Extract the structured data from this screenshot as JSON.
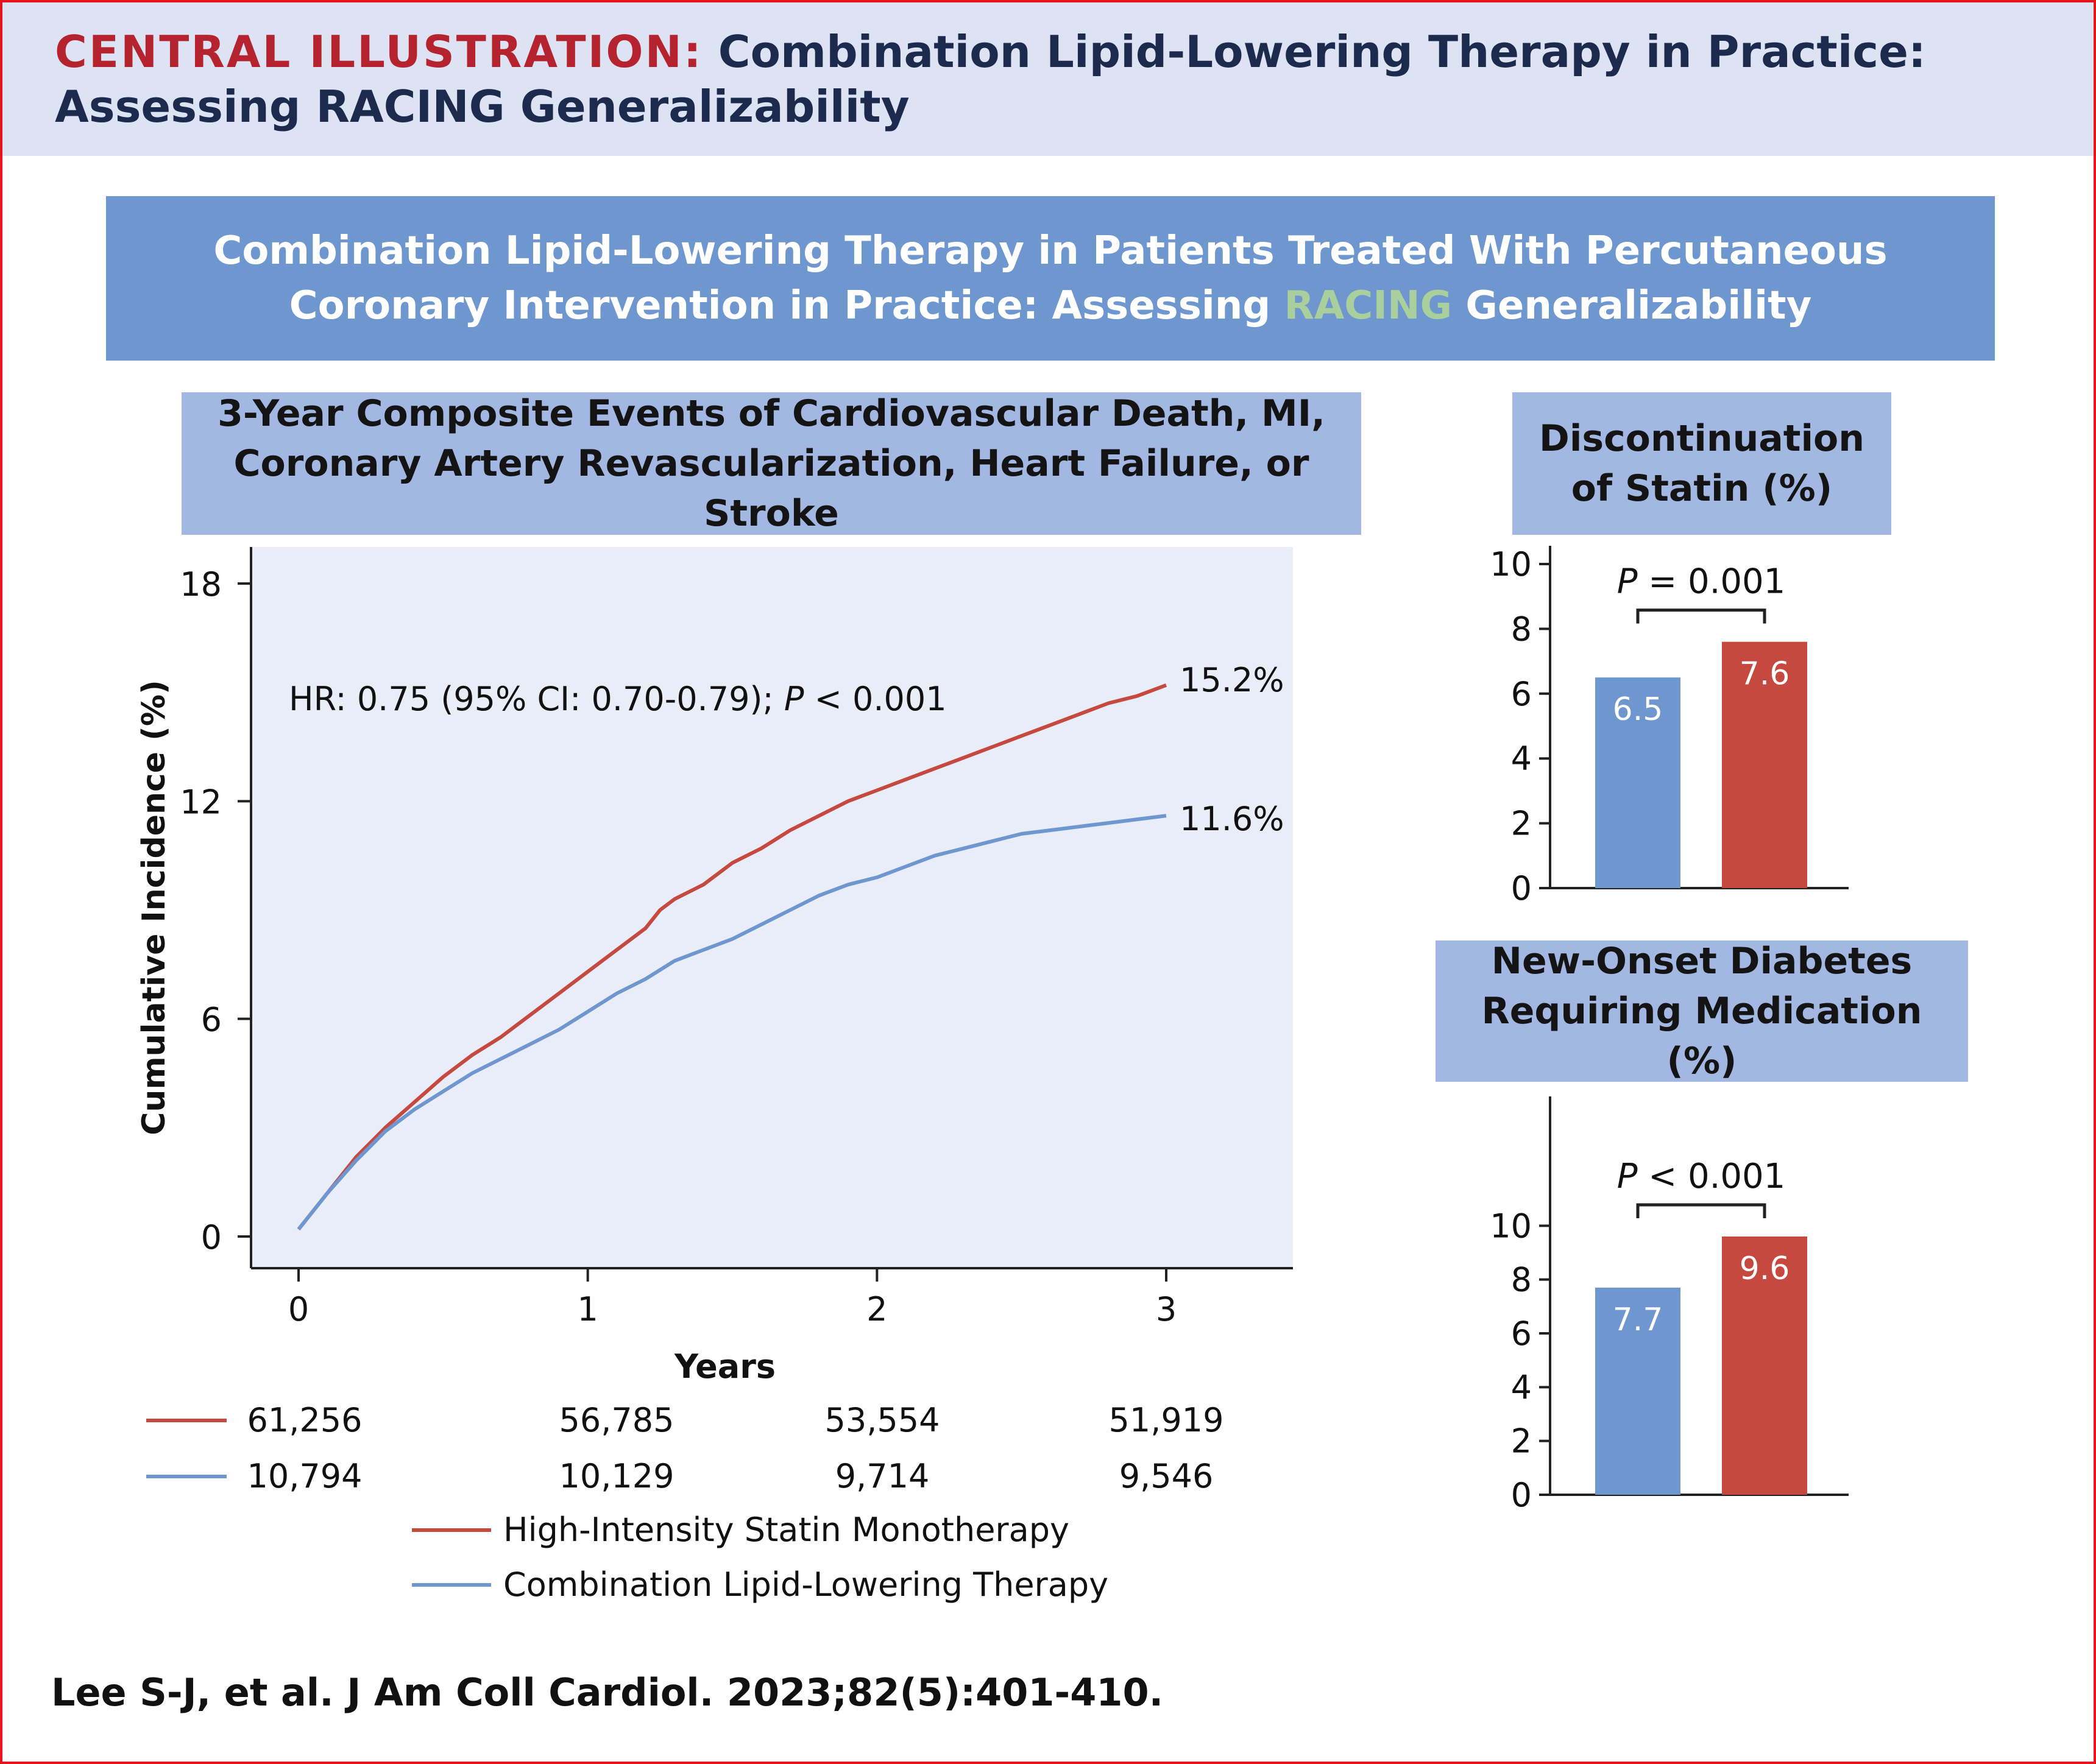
{
  "header": {
    "label": "CENTRAL ILLUSTRATION:",
    "title": "Combination Lipid-Lowering Therapy in Practice: Assessing RACING Generalizability"
  },
  "banner": {
    "before": "Combination Lipid-Lowering Therapy in Patients Treated With Percutaneous Coronary Intervention in Practice: Assessing ",
    "highlight": "RACING",
    "after": " Generalizability"
  },
  "colors": {
    "red": "#c5493f",
    "blue": "#6e96cf",
    "header_label": "#b5232e",
    "highlight": "#a9cf9c",
    "plot_bg": "#e9edf7"
  },
  "panels": {
    "km": {
      "title": "3-Year Composite Events of Cardiovascular Death, MI, Coronary Artery Revascularization, Heart Failure, or Stroke"
    },
    "statin": {
      "title": "Discontinuation of Statin (%)"
    },
    "diabetes": {
      "title": "New-Onset Diabetes Requiring Medication (%)"
    }
  },
  "chart_data": [
    {
      "type": "line",
      "xlabel": "Years",
      "ylabel": "Cumulative Incidence (%)",
      "xlim": [
        0,
        3
      ],
      "ylim": [
        0,
        18
      ],
      "xticks": [
        0,
        1,
        2,
        3
      ],
      "yticks": [
        0,
        6,
        12,
        18
      ],
      "annotation": {
        "prefix": "HR: 0.75 (95% CI: 0.70-0.79); ",
        "p_label": "P",
        "suffix": " < 0.001"
      },
      "series": [
        {
          "name": "High-Intensity Statin Monotherapy",
          "color": "#c5493f",
          "end_label": "15.2%",
          "at_risk": [
            "61,256",
            "56,785",
            "53,554",
            "51,919"
          ],
          "x": [
            0,
            0.1,
            0.2,
            0.25,
            0.3,
            0.4,
            0.5,
            0.6,
            0.7,
            0.8,
            0.9,
            1.0,
            1.1,
            1.2,
            1.25,
            1.3,
            1.4,
            1.5,
            1.6,
            1.7,
            1.8,
            1.9,
            2.0,
            2.1,
            2.2,
            2.3,
            2.4,
            2.5,
            2.6,
            2.7,
            2.8,
            2.9,
            3.0
          ],
          "y": [
            0.2,
            1.2,
            2.2,
            2.6,
            3.0,
            3.7,
            4.4,
            5.0,
            5.5,
            6.1,
            6.7,
            7.3,
            7.9,
            8.5,
            9.0,
            9.3,
            9.7,
            10.3,
            10.7,
            11.2,
            11.6,
            12.0,
            12.3,
            12.6,
            12.9,
            13.2,
            13.5,
            13.8,
            14.1,
            14.4,
            14.7,
            14.9,
            15.2
          ]
        },
        {
          "name": "Combination Lipid-Lowering Therapy",
          "color": "#6e96cf",
          "end_label": "11.6%",
          "at_risk": [
            "10,794",
            "10,129",
            "9,714",
            "9,546"
          ],
          "x": [
            0,
            0.1,
            0.2,
            0.25,
            0.3,
            0.4,
            0.5,
            0.6,
            0.7,
            0.8,
            0.9,
            1.0,
            1.1,
            1.2,
            1.3,
            1.4,
            1.5,
            1.6,
            1.7,
            1.8,
            1.9,
            2.0,
            2.1,
            2.2,
            2.3,
            2.4,
            2.5,
            2.6,
            2.7,
            2.8,
            2.9,
            3.0
          ],
          "y": [
            0.2,
            1.2,
            2.1,
            2.5,
            2.9,
            3.5,
            4.0,
            4.5,
            4.9,
            5.3,
            5.7,
            6.2,
            6.7,
            7.1,
            7.6,
            7.9,
            8.2,
            8.6,
            9.0,
            9.4,
            9.7,
            9.9,
            10.2,
            10.5,
            10.7,
            10.9,
            11.1,
            11.2,
            11.3,
            11.4,
            11.5,
            11.6
          ]
        }
      ],
      "legend": [
        {
          "label": "High-Intensity Statin Monotherapy",
          "color": "#c5493f"
        },
        {
          "label": "Combination Lipid-Lowering Therapy",
          "color": "#6e96cf"
        }
      ]
    },
    {
      "type": "bar",
      "title": "Discontinuation of Statin (%)",
      "ylim": [
        0,
        10
      ],
      "yticks": [
        0,
        2,
        4,
        6,
        8,
        10
      ],
      "p_value": {
        "label": "P",
        "text": " = 0.001"
      },
      "values": [
        6.5,
        7.6
      ],
      "value_labels": [
        "6.5",
        "7.6"
      ],
      "colors": [
        "#6e96cf",
        "#c5493f"
      ]
    },
    {
      "type": "bar",
      "title": "New-Onset Diabetes Requiring Medication (%)",
      "ylim": [
        0,
        12
      ],
      "yticks": [
        0,
        2,
        4,
        6,
        8,
        10
      ],
      "p_value": {
        "label": "P",
        "text": " < 0.001"
      },
      "values": [
        7.7,
        9.6
      ],
      "value_labels": [
        "7.7",
        "9.6"
      ],
      "colors": [
        "#6e96cf",
        "#c5493f"
      ]
    }
  ],
  "citation": "Lee S-J, et al. J Am Coll Cardiol. 2023;82(5):401-410."
}
